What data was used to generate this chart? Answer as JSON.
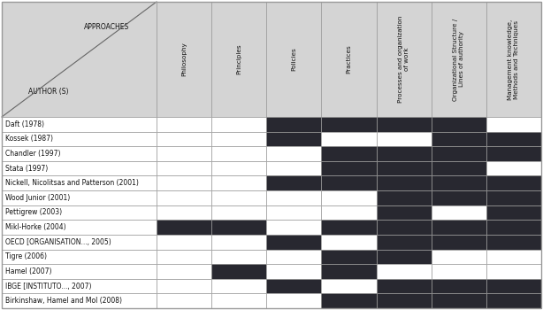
{
  "col_headers": [
    "Philosophy",
    "Principles",
    "Policies",
    "Practices",
    "Processes and organization\nof work",
    "Organizational Structure /\nLines of authority",
    "Management knowledge,\nMethods and Techniques"
  ],
  "row_headers": [
    "Daft (1978)",
    "Kossek (1987)",
    "Chandler (1997)",
    "Stata (1997)",
    "Nickell, Nicolitsas and Patterson (2001)",
    "Wood Junior (2001)",
    "Pettigrew (2003)",
    "Mikl-Horke (2004)",
    "OECD [ORGANISATION..., 2005)",
    "Tigre (2006)",
    "Hamel (2007)",
    "IBGE [INSTITUTO..., 2007)",
    "Birkinshaw, Hamel and Mol (2008)"
  ],
  "cells": [
    [
      0,
      0,
      1,
      1,
      1,
      1,
      0
    ],
    [
      0,
      0,
      1,
      0,
      0,
      1,
      1
    ],
    [
      0,
      0,
      0,
      1,
      1,
      1,
      1
    ],
    [
      0,
      0,
      0,
      1,
      1,
      1,
      0
    ],
    [
      0,
      0,
      1,
      1,
      1,
      1,
      1
    ],
    [
      0,
      0,
      0,
      0,
      1,
      1,
      1
    ],
    [
      0,
      0,
      0,
      0,
      1,
      0,
      1
    ],
    [
      1,
      1,
      0,
      1,
      1,
      1,
      1
    ],
    [
      0,
      0,
      1,
      0,
      1,
      1,
      1
    ],
    [
      0,
      0,
      0,
      1,
      1,
      0,
      0
    ],
    [
      0,
      1,
      0,
      1,
      0,
      0,
      0
    ],
    [
      0,
      0,
      1,
      0,
      1,
      1,
      1
    ],
    [
      0,
      0,
      0,
      1,
      1,
      1,
      1
    ]
  ],
  "filled_color": "#282830",
  "empty_color": "#ffffff",
  "header_bg": "#d4d4d4",
  "grid_color": "#999999",
  "text_color": "#111111",
  "header_fontsize": 5.2,
  "row_fontsize": 5.5,
  "diagonal_label_top": "APPROACHES",
  "diagonal_label_bottom": "AUTHOR (S)"
}
